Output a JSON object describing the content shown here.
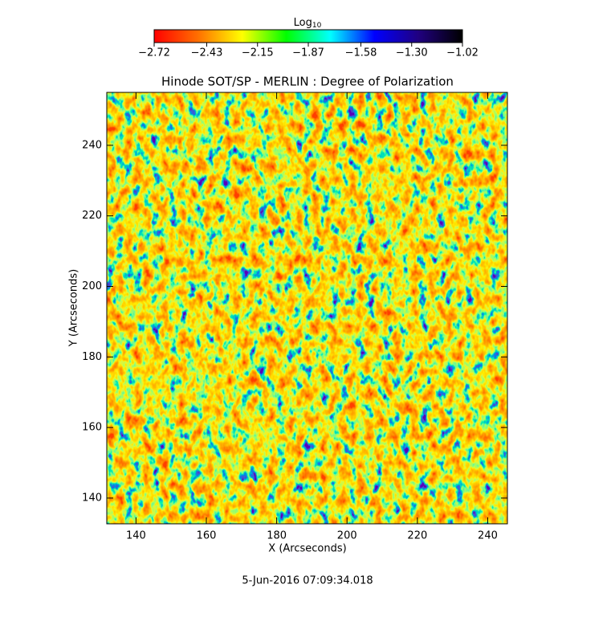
{
  "chart_data": {
    "type": "heatmap",
    "title": "Hinode SOT/SP - MERLIN : Degree of Polarization",
    "xlabel": "X (Arcseconds)",
    "ylabel": "Y (Arcseconds)",
    "xlim": [
      131.7,
      245.6
    ],
    "ylim": [
      132.7,
      255.0
    ],
    "xticks": [
      140,
      160,
      180,
      200,
      220,
      240
    ],
    "yticks": [
      140,
      160,
      180,
      200,
      220,
      240
    ],
    "colorbar": {
      "label": "Log",
      "label_subscript": "10",
      "lim": [
        -2.72,
        -1.02
      ],
      "ticks": [
        {
          "value": -2.72,
          "label": "−2.72"
        },
        {
          "value": -2.43,
          "label": "−2.43"
        },
        {
          "value": -2.15,
          "label": "−2.15"
        },
        {
          "value": -1.87,
          "label": "−1.87"
        },
        {
          "value": -1.58,
          "label": "−1.58"
        },
        {
          "value": -1.3,
          "label": "−1.30"
        },
        {
          "value": -1.02,
          "label": "−1.02"
        }
      ],
      "colormap": [
        "#ff0000",
        "#ff7000",
        "#ffff00",
        "#00ff00",
        "#00ffff",
        "#0000ff",
        "#200080",
        "#000000"
      ]
    },
    "annotation": "5-Jun-2016 07:09:34.018"
  }
}
